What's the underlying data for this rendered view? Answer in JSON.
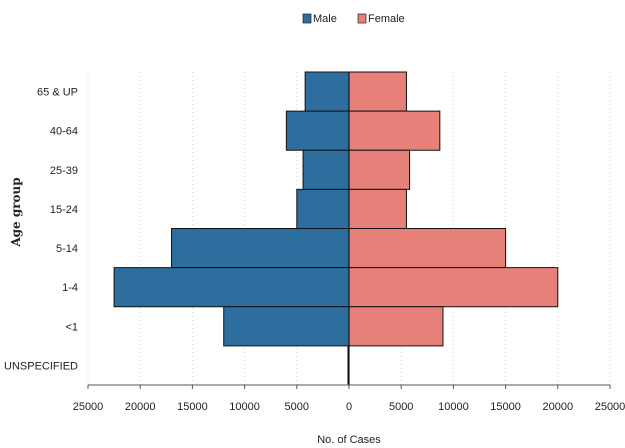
{
  "chart_data": {
    "type": "bar",
    "orientation": "horizontal",
    "layout": "population-pyramid",
    "categories": [
      "65 & UP",
      "40-64",
      "25-39",
      "15-24",
      "5-14",
      "1-4",
      "<1",
      "UNSPECIFIED"
    ],
    "series": [
      {
        "name": "Male",
        "values": [
          4200,
          6000,
          4400,
          5000,
          17000,
          22500,
          12000,
          100
        ],
        "color": "#2e6e9e"
      },
      {
        "name": "Female",
        "values": [
          5500,
          8700,
          5800,
          5500,
          15000,
          20000,
          9000,
          0
        ],
        "color": "#e8807a"
      }
    ],
    "xlabel": "No. of Cases",
    "ylabel": "Age group",
    "xlim": [
      -25000,
      25000
    ],
    "xticks": [
      -25000,
      -20000,
      -15000,
      -10000,
      -5000,
      0,
      5000,
      10000,
      15000,
      20000,
      25000
    ],
    "xtick_labels": [
      "25000",
      "20000",
      "15000",
      "10000",
      "5000",
      "0",
      "5000",
      "10000",
      "15000",
      "20000",
      "25000"
    ],
    "legend": {
      "position": "top",
      "entries": [
        "Male",
        "Female"
      ]
    },
    "grid": "vertical dotted"
  }
}
